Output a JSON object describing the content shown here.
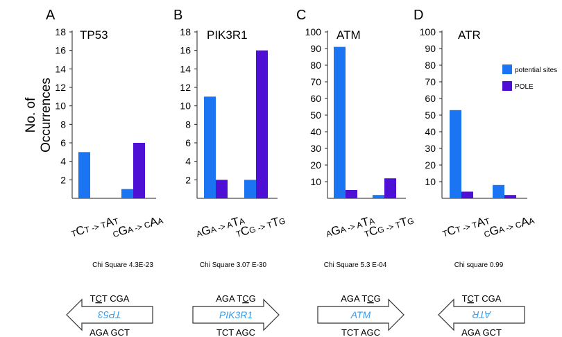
{
  "y_axis_label": [
    "No. of",
    "Occurrences"
  ],
  "legend": [
    {
      "label": "potential sites",
      "color": "#1b74f2"
    },
    {
      "label": "POLE",
      "color": "#4f10d6"
    }
  ],
  "chart_data": [
    {
      "panel": "A",
      "title": "TP53",
      "type": "bar",
      "categories": [
        "TCT -> TAT",
        "CGA -> CAA"
      ],
      "series": [
        {
          "name": "potential sites",
          "values": [
            5,
            1
          ]
        },
        {
          "name": "POLE",
          "values": [
            0,
            6
          ]
        }
      ],
      "ylim": [
        0,
        18
      ],
      "yticks": [
        2,
        4,
        6,
        8,
        10,
        12,
        14,
        16,
        18
      ],
      "stat": "Chi Square 4.3E-23"
    },
    {
      "panel": "B",
      "title": "PIK3R1",
      "type": "bar",
      "categories": [
        "AGA -> ATA",
        "TCG -> TTG"
      ],
      "series": [
        {
          "name": "potential sites",
          "values": [
            11,
            2
          ]
        },
        {
          "name": "POLE",
          "values": [
            2,
            16
          ]
        }
      ],
      "ylim": [
        0,
        18
      ],
      "yticks": [
        2,
        4,
        6,
        8,
        10,
        12,
        14,
        16,
        18
      ],
      "stat": "Chi Square 3.07 E-30"
    },
    {
      "panel": "C",
      "title": "ATM",
      "type": "bar",
      "categories": [
        "AGA -> ATA",
        "TCG -> TTG"
      ],
      "series": [
        {
          "name": "potential sites",
          "values": [
            91,
            2
          ]
        },
        {
          "name": "POLE",
          "values": [
            5,
            12
          ]
        }
      ],
      "ylim": [
        0,
        100
      ],
      "yticks": [
        10,
        20,
        30,
        40,
        50,
        60,
        70,
        80,
        90,
        100
      ],
      "stat": "Chi  Square 5.3 E-04"
    },
    {
      "panel": "D",
      "title": "ATR",
      "type": "bar",
      "categories": [
        "TCT -> TAT",
        "CGA -> CAA"
      ],
      "series": [
        {
          "name": "potential sites",
          "values": [
            53,
            8
          ]
        },
        {
          "name": "POLE",
          "values": [
            4,
            2
          ]
        }
      ],
      "ylim": [
        0,
        100
      ],
      "yticks": [
        10,
        20,
        30,
        40,
        50,
        60,
        70,
        80,
        90,
        100
      ],
      "stat": "Chi square 0.99"
    }
  ],
  "genes": [
    {
      "name": "TP53",
      "direction": "left",
      "top_a": "T",
      "top_u": "C",
      "top_b": "T",
      "top2": "CGA",
      "bottom1": "AGA",
      "bottom2": "GCT"
    },
    {
      "name": "PIK3R1",
      "direction": "right",
      "top_a": "AGA  T",
      "top_u": "C",
      "top_b": "G",
      "top2": "",
      "bottom1": "TCT",
      "bottom2": "AGC"
    },
    {
      "name": "ATM",
      "direction": "right",
      "top_a": "AGA  T",
      "top_u": "C",
      "top_b": "G",
      "top2": "",
      "bottom1": "TCT",
      "bottom2": "AGC"
    },
    {
      "name": "ATR",
      "direction": "left",
      "top_a": "T",
      "top_u": "C",
      "top_b": "T",
      "top2": "CGA",
      "bottom1": "AGA",
      "bottom2": "GCT"
    }
  ]
}
